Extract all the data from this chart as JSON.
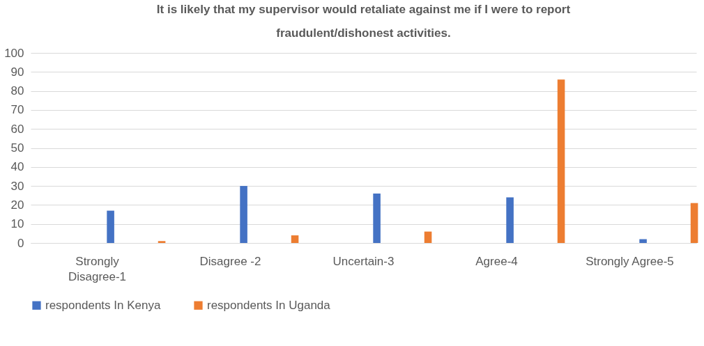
{
  "chart_data": {
    "type": "bar",
    "title": [
      "It is likely that my supervisor would retaliate against me if I were to report",
      "fraudulent/dishonest activities."
    ],
    "categories": [
      "Strongly Disagree-1",
      "Disagree -2",
      "Uncertain-3",
      "Agree-4",
      "Strongly Agree-5"
    ],
    "series": [
      {
        "name": "respondents In Kenya",
        "color": "#4472c4",
        "values": [
          17,
          30,
          26,
          24,
          2
        ]
      },
      {
        "name": "respondents In Uganda",
        "color": "#ed7d31",
        "values": [
          1,
          4,
          6,
          86,
          21
        ]
      }
    ],
    "ylim": [
      0,
      100
    ],
    "yticks": [
      0,
      10,
      20,
      30,
      40,
      50,
      60,
      70,
      80,
      90,
      100
    ],
    "grid": "y",
    "legend": "bottom"
  }
}
